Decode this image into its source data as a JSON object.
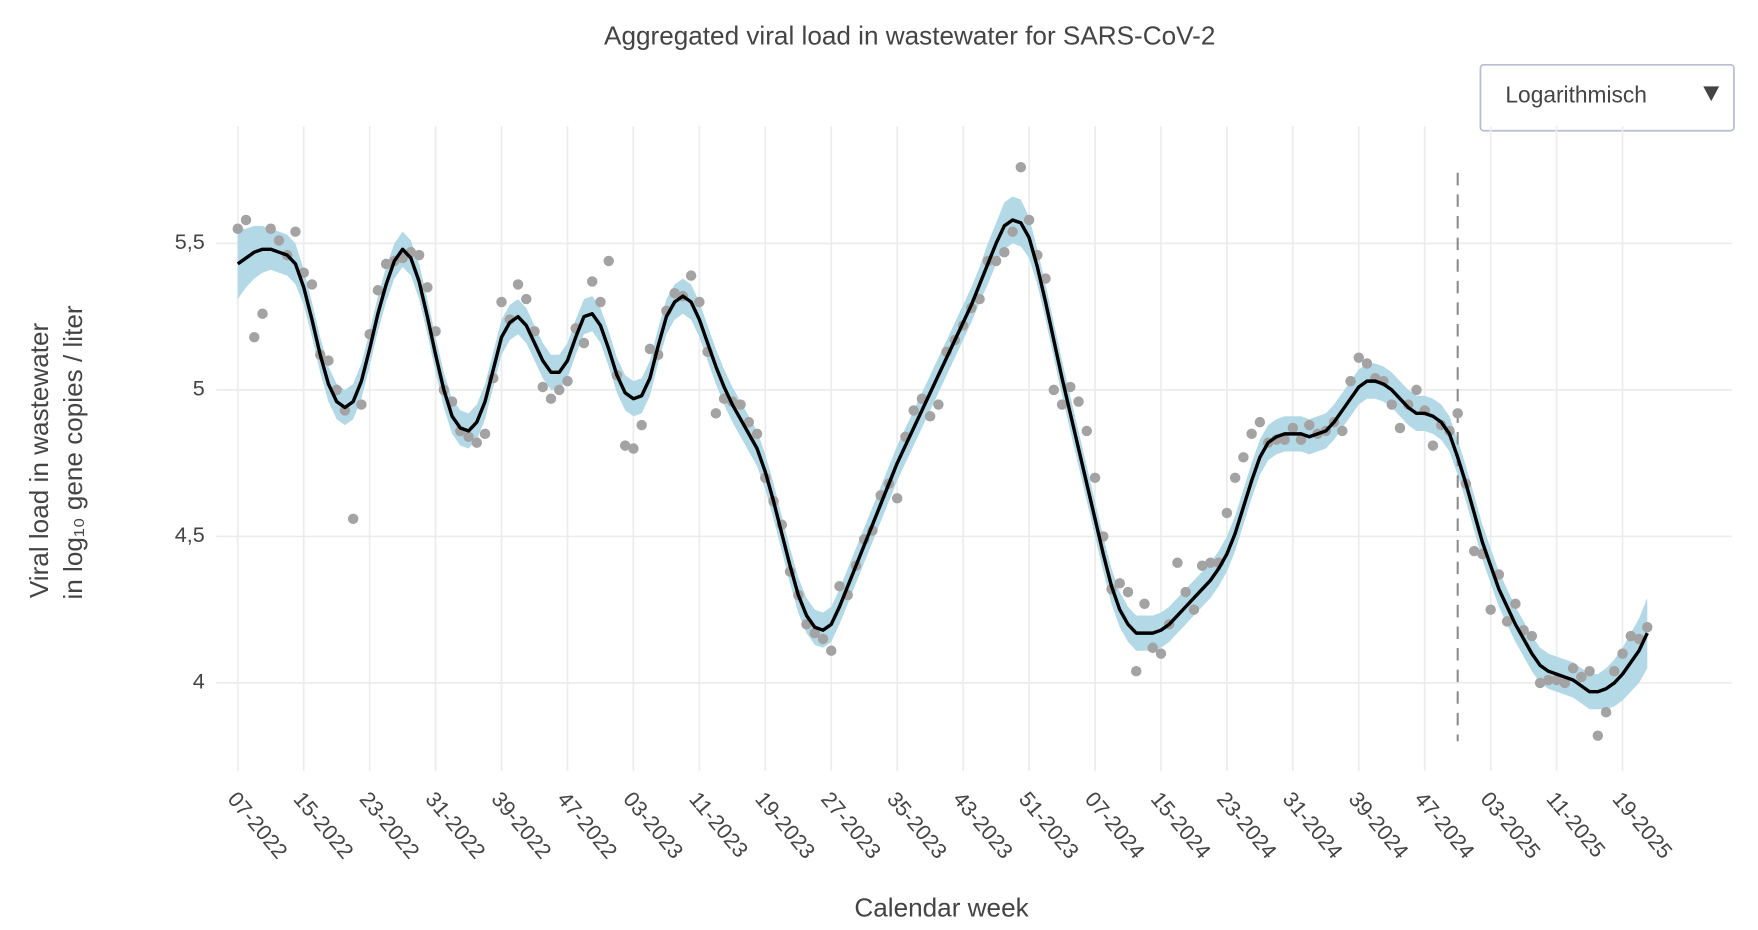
{
  "chart_data": {
    "type": "line",
    "title": "Aggregated viral load in wastewater for SARS-CoV-2",
    "x_label": "Calendar week",
    "y_label_lines": [
      "Viral load in wastewater",
      "in log₁₀ gene copies / liter"
    ],
    "dropdown": {
      "label": "Logarithmisch"
    },
    "grid": true,
    "ylim": [
      3.7,
      5.9
    ],
    "yticks": [
      4,
      {
        "value": 4.5,
        "label": "4,5"
      },
      5,
      {
        "value": 5.5,
        "label": "5,5"
      }
    ],
    "marker_category_index": 148,
    "categories": [
      "07-2022",
      null,
      null,
      null,
      null,
      null,
      null,
      null,
      "15-2022",
      null,
      null,
      null,
      null,
      null,
      null,
      null,
      "23-2022",
      null,
      null,
      null,
      null,
      null,
      null,
      null,
      "31-2022",
      null,
      null,
      null,
      null,
      null,
      null,
      null,
      "39-2022",
      null,
      null,
      null,
      null,
      null,
      null,
      null,
      "47-2022",
      null,
      null,
      null,
      null,
      null,
      null,
      null,
      "03-2023",
      null,
      null,
      null,
      null,
      null,
      null,
      null,
      "11-2023",
      null,
      null,
      null,
      null,
      null,
      null,
      null,
      "19-2023",
      null,
      null,
      null,
      null,
      null,
      null,
      null,
      "27-2023",
      null,
      null,
      null,
      null,
      null,
      null,
      null,
      "35-2023",
      null,
      null,
      null,
      null,
      null,
      null,
      null,
      "43-2023",
      null,
      null,
      null,
      null,
      null,
      null,
      null,
      "51-2023",
      null,
      null,
      null,
      null,
      null,
      null,
      null,
      "07-2024",
      null,
      null,
      null,
      null,
      null,
      null,
      null,
      "15-2024",
      null,
      null,
      null,
      null,
      null,
      null,
      null,
      "23-2024",
      null,
      null,
      null,
      null,
      null,
      null,
      null,
      "31-2024",
      null,
      null,
      null,
      null,
      null,
      null,
      null,
      "39-2024",
      null,
      null,
      null,
      null,
      null,
      null,
      null,
      "47-2024",
      null,
      null,
      null,
      null,
      null,
      null,
      null,
      "03-2025",
      null,
      null,
      null,
      null,
      null,
      null,
      null,
      "11-2025",
      null,
      null,
      null,
      null,
      null,
      null,
      null,
      "19-2025",
      null,
      null,
      null
    ],
    "series": [
      {
        "style": "points",
        "color": "#a3a3a3",
        "values": [
          5.55,
          5.58,
          5.18,
          5.26,
          5.55,
          5.51,
          5.46,
          5.54,
          5.4,
          5.36,
          5.12,
          5.1,
          5.0,
          4.93,
          4.56,
          4.95,
          5.19,
          5.34,
          5.43,
          5.44,
          5.45,
          5.47,
          5.46,
          5.35,
          5.2,
          5.0,
          4.96,
          4.86,
          4.84,
          4.82,
          4.85,
          5.04,
          5.3,
          5.24,
          5.36,
          5.31,
          5.2,
          5.01,
          4.97,
          5.0,
          5.03,
          5.21,
          5.16,
          5.37,
          5.3,
          5.44,
          5.05,
          4.81,
          4.8,
          4.88,
          5.14,
          5.12,
          5.27,
          5.33,
          5.32,
          5.39,
          5.3,
          5.13,
          4.92,
          4.97,
          4.96,
          4.95,
          4.89,
          4.85,
          4.7,
          4.62,
          4.54,
          4.38,
          4.3,
          4.2,
          4.17,
          4.15,
          4.11,
          4.33,
          4.3,
          4.4,
          4.49,
          4.52,
          4.64,
          4.68,
          4.63,
          4.84,
          4.93,
          4.97,
          4.91,
          4.95,
          5.13,
          5.17,
          5.22,
          5.28,
          5.31,
          5.44,
          5.44,
          5.47,
          5.54,
          5.76,
          5.58,
          5.46,
          5.38,
          5.0,
          4.95,
          5.01,
          4.96,
          4.86,
          4.7,
          4.5,
          4.32,
          4.34,
          4.31,
          4.04,
          4.27,
          4.12,
          4.1,
          4.2,
          4.41,
          4.31,
          4.25,
          4.4,
          4.41,
          4.41,
          4.58,
          4.7,
          4.77,
          4.85,
          4.89,
          4.82,
          4.83,
          4.83,
          4.87,
          4.83,
          4.88,
          4.85,
          4.86,
          4.89,
          4.86,
          5.03,
          5.11,
          5.09,
          5.04,
          5.03,
          4.95,
          4.87,
          4.95,
          5.0,
          4.93,
          4.81,
          4.88,
          4.86,
          4.92,
          4.68,
          4.45,
          4.44,
          4.25,
          4.37,
          4.21,
          4.27,
          4.18,
          4.16,
          4.0,
          4.01,
          4.01,
          4.0,
          4.05,
          4.02,
          4.04,
          3.82,
          3.9,
          4.04,
          4.1,
          4.16,
          4.15,
          4.19
        ]
      },
      {
        "style": "line",
        "color": "#000000",
        "error_color": "#b3d8e6",
        "values": [
          5.43,
          5.45,
          5.47,
          5.48,
          5.48,
          5.47,
          5.46,
          5.43,
          5.35,
          5.24,
          5.12,
          5.02,
          4.96,
          4.94,
          4.96,
          5.03,
          5.14,
          5.26,
          5.36,
          5.44,
          5.48,
          5.45,
          5.37,
          5.25,
          5.12,
          5.0,
          4.91,
          4.87,
          4.86,
          4.89,
          4.96,
          5.07,
          5.18,
          5.23,
          5.25,
          5.22,
          5.16,
          5.1,
          5.06,
          5.06,
          5.1,
          5.18,
          5.25,
          5.26,
          5.22,
          5.14,
          5.05,
          4.99,
          4.97,
          4.98,
          5.04,
          5.15,
          5.25,
          5.3,
          5.32,
          5.3,
          5.24,
          5.16,
          5.08,
          5.01,
          4.95,
          4.9,
          4.85,
          4.8,
          4.72,
          4.62,
          4.51,
          4.4,
          4.3,
          4.23,
          4.19,
          4.18,
          4.2,
          4.26,
          4.33,
          4.4,
          4.47,
          4.54,
          4.61,
          4.68,
          4.75,
          4.81,
          4.87,
          4.93,
          4.99,
          5.05,
          5.11,
          5.17,
          5.23,
          5.29,
          5.36,
          5.43,
          5.5,
          5.56,
          5.58,
          5.57,
          5.52,
          5.42,
          5.3,
          5.17,
          5.04,
          4.92,
          4.8,
          4.68,
          4.56,
          4.44,
          4.33,
          4.25,
          4.2,
          4.17,
          4.17,
          4.17,
          4.18,
          4.2,
          4.23,
          4.26,
          4.29,
          4.32,
          4.35,
          4.39,
          4.44,
          4.51,
          4.6,
          4.69,
          4.77,
          4.82,
          4.84,
          4.85,
          4.85,
          4.85,
          4.84,
          4.85,
          4.86,
          4.89,
          4.93,
          4.97,
          5.01,
          5.03,
          5.03,
          5.02,
          5.0,
          4.97,
          4.94,
          4.92,
          4.92,
          4.91,
          4.89,
          4.85,
          4.77,
          4.68,
          4.58,
          4.48,
          4.4,
          4.32,
          4.26,
          4.2,
          4.15,
          4.1,
          4.06,
          4.04,
          4.03,
          4.02,
          4.01,
          3.99,
          3.97,
          3.97,
          3.98,
          4.0,
          4.03,
          4.07,
          4.11,
          4.17
        ],
        "errors": [
          0.12,
          0.1,
          0.09,
          0.08,
          0.07,
          0.07,
          0.07,
          0.07,
          0.06,
          0.06,
          0.06,
          0.06,
          0.06,
          0.06,
          0.06,
          0.06,
          0.06,
          0.06,
          0.06,
          0.06,
          0.06,
          0.06,
          0.06,
          0.06,
          0.06,
          0.06,
          0.06,
          0.06,
          0.06,
          0.06,
          0.06,
          0.06,
          0.06,
          0.06,
          0.06,
          0.06,
          0.06,
          0.06,
          0.06,
          0.06,
          0.06,
          0.06,
          0.06,
          0.06,
          0.06,
          0.06,
          0.06,
          0.06,
          0.06,
          0.06,
          0.06,
          0.06,
          0.06,
          0.06,
          0.06,
          0.06,
          0.06,
          0.06,
          0.06,
          0.06,
          0.06,
          0.06,
          0.06,
          0.06,
          0.06,
          0.06,
          0.06,
          0.06,
          0.06,
          0.06,
          0.06,
          0.06,
          0.06,
          0.06,
          0.06,
          0.06,
          0.06,
          0.06,
          0.06,
          0.06,
          0.06,
          0.06,
          0.06,
          0.06,
          0.06,
          0.06,
          0.06,
          0.06,
          0.06,
          0.06,
          0.06,
          0.07,
          0.07,
          0.08,
          0.08,
          0.08,
          0.07,
          0.06,
          0.06,
          0.06,
          0.06,
          0.06,
          0.06,
          0.06,
          0.06,
          0.06,
          0.06,
          0.06,
          0.06,
          0.06,
          0.06,
          0.06,
          0.06,
          0.06,
          0.06,
          0.06,
          0.06,
          0.06,
          0.06,
          0.06,
          0.06,
          0.06,
          0.06,
          0.06,
          0.06,
          0.06,
          0.06,
          0.06,
          0.06,
          0.06,
          0.06,
          0.06,
          0.06,
          0.06,
          0.06,
          0.06,
          0.06,
          0.06,
          0.06,
          0.06,
          0.06,
          0.06,
          0.06,
          0.06,
          0.06,
          0.06,
          0.06,
          0.06,
          0.06,
          0.06,
          0.06,
          0.06,
          0.06,
          0.06,
          0.06,
          0.06,
          0.06,
          0.06,
          0.06,
          0.06,
          0.06,
          0.06,
          0.06,
          0.06,
          0.06,
          0.06,
          0.07,
          0.08,
          0.09,
          0.1,
          0.11,
          0.12
        ]
      }
    ]
  }
}
